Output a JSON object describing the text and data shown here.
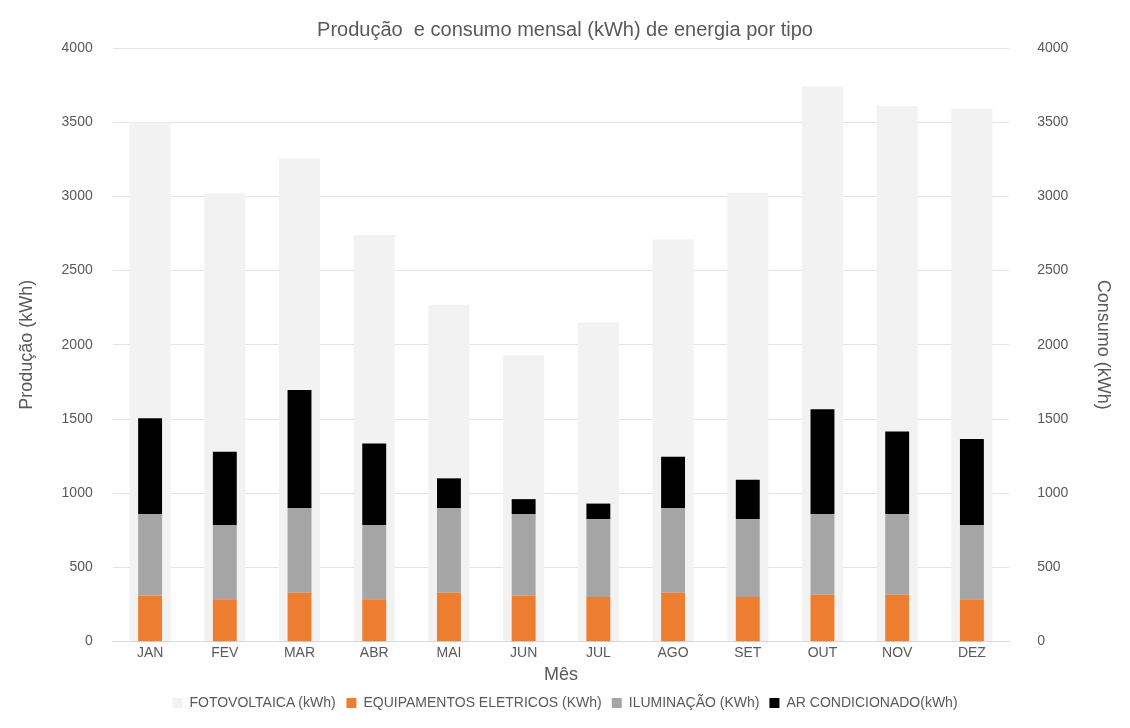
{
  "chart_data": {
    "type": "bar",
    "title": "Produção  e consumo mensal (kWh) de energia por tipo",
    "xlabel": "Mês",
    "ylabel": "Produção (kWh)",
    "y2label": "Consumo (kWh)",
    "categories": [
      "JAN",
      "FEV",
      "MAR",
      "ABR",
      "MAI",
      "JUN",
      "JUL",
      "AGO",
      "SET",
      "OUT",
      "NOV",
      "DEZ"
    ],
    "series": [
      {
        "name": "FOTOVOLTAICA (kWh)",
        "color": "#f2f2f2",
        "axis": "y",
        "values": [
          3500,
          3020,
          3255,
          2740,
          2270,
          1930,
          2150,
          2710,
          3025,
          3740,
          3610,
          3590
        ]
      },
      {
        "name": "EQUIPAMENTOS ELETRICOS (KWh)",
        "color": "#ed7d31",
        "axis": "y2",
        "values": [
          310,
          285,
          330,
          285,
          330,
          310,
          300,
          330,
          300,
          315,
          315,
          285
        ]
      },
      {
        "name": "ILUMINAÇÃO (KWh)",
        "color": "#a5a5a5",
        "axis": "y2",
        "values": [
          550,
          500,
          570,
          500,
          570,
          550,
          525,
          570,
          525,
          545,
          545,
          500
        ]
      },
      {
        "name": "AR CONDICIONADO(kWh)",
        "color": "#000000",
        "axis": "y2",
        "values": [
          645,
          495,
          795,
          550,
          200,
          100,
          105,
          345,
          265,
          705,
          555,
          580
        ]
      }
    ],
    "stacked": true,
    "ylim": [
      0,
      4000
    ],
    "yticks": [
      0,
      500,
      1000,
      1500,
      2000,
      2500,
      3000,
      3500,
      4000
    ],
    "y2lim": [
      0,
      4000
    ],
    "y2ticks": [
      0,
      500,
      1000,
      1500,
      2000,
      2500,
      3000,
      3500,
      4000
    ],
    "grid": "y",
    "legend": "bottom"
  }
}
